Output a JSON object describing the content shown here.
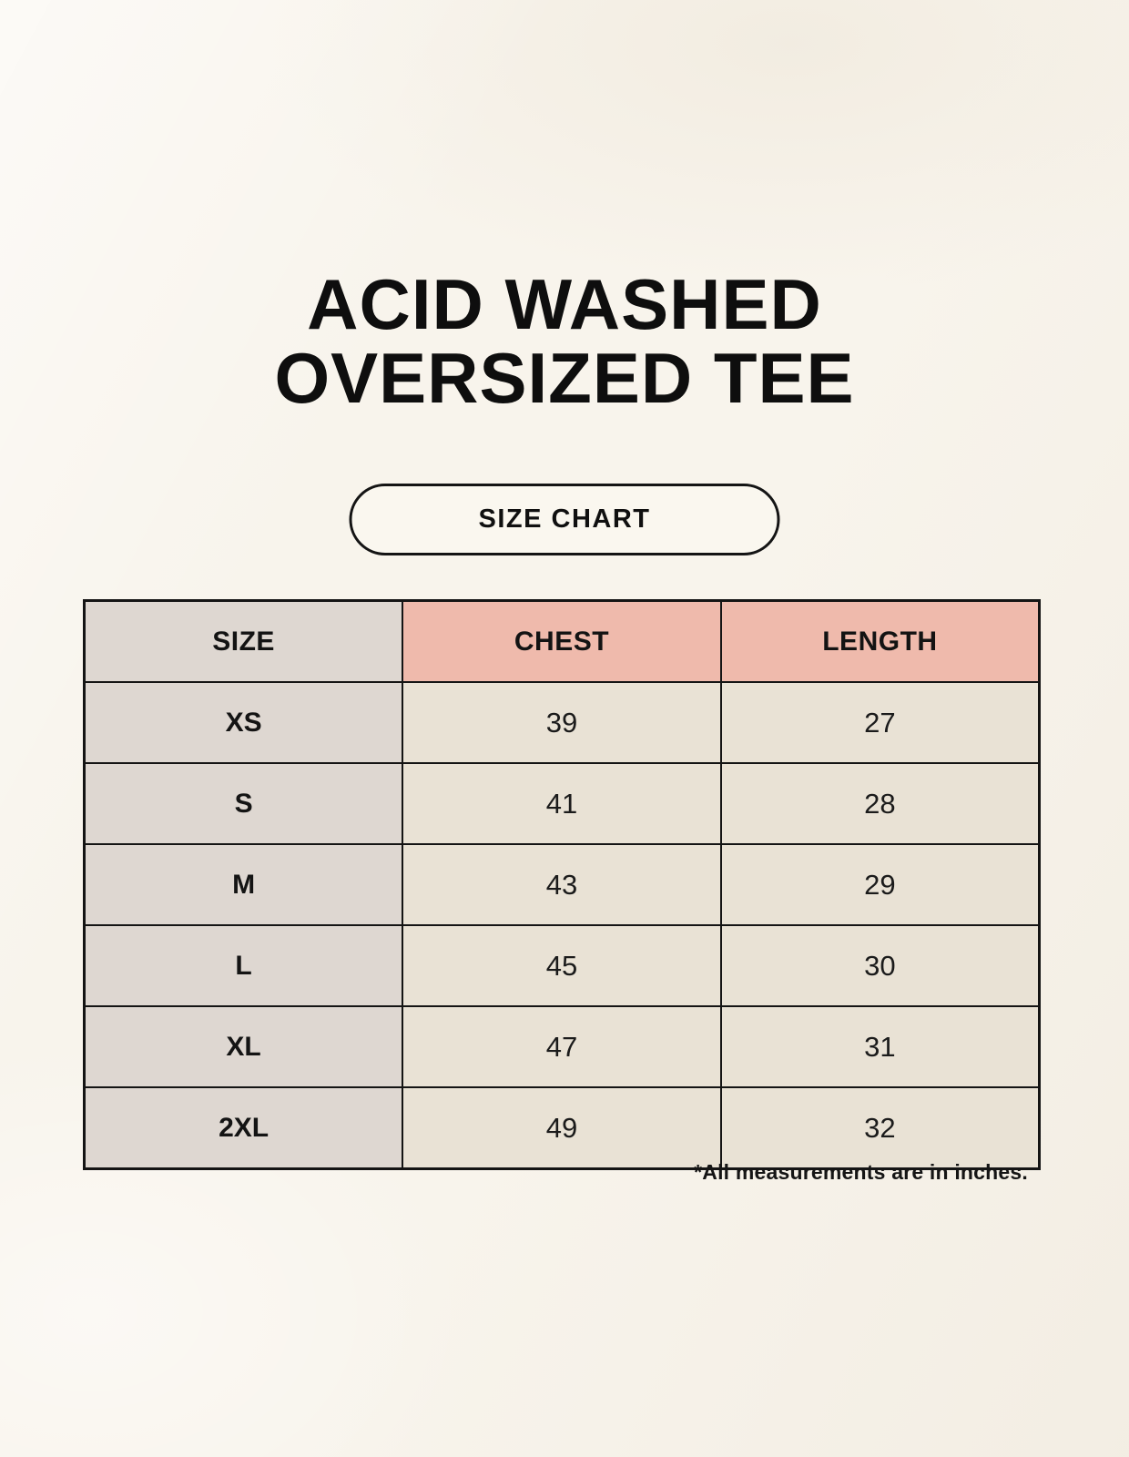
{
  "header": {
    "title_line1": "ACID WASHED",
    "title_line2": "OVERSIZED TEE",
    "size_chart_label": "SIZE CHART"
  },
  "chart_data": {
    "type": "table",
    "title": "ACID WASHED OVERSIZED TEE",
    "columns": [
      "SIZE",
      "CHEST",
      "LENGTH"
    ],
    "rows": [
      [
        "XS",
        "39",
        "27"
      ],
      [
        "S",
        "41",
        "28"
      ],
      [
        "M",
        "43",
        "29"
      ],
      [
        "L",
        "45",
        "30"
      ],
      [
        "XL",
        "47",
        "31"
      ],
      [
        "2XL",
        "49",
        "32"
      ]
    ],
    "footnote": "*All measurements are in inches.",
    "units": "inches"
  },
  "colors": {
    "background": "#f8f4ec",
    "size_column_bg": "#ded7d1",
    "measure_header_bg": "#efbaac",
    "value_cell_bg": "#e9e2d5",
    "border": "#141414",
    "text": "#121212"
  }
}
